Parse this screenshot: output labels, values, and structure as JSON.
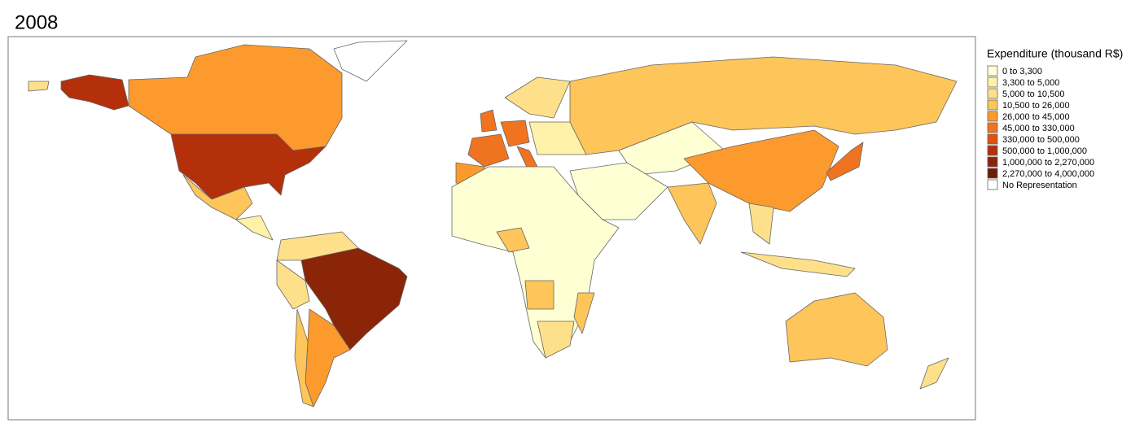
{
  "title": "2008",
  "legend": {
    "title": "Expenditure (thousand R$)",
    "items": [
      {
        "label": "0 to 3,300",
        "color": "#ffffd4"
      },
      {
        "label": "3,300 to 5,000",
        "color": "#fff1a8"
      },
      {
        "label": "5,000 to 10,500",
        "color": "#fee08b"
      },
      {
        "label": "10,500 to 26,000",
        "color": "#fdc55a"
      },
      {
        "label": "26,000 to 45,000",
        "color": "#fd9a2d"
      },
      {
        "label": "45,000 to 330,000",
        "color": "#f07320"
      },
      {
        "label": "330,000 to 500,000",
        "color": "#e0530f"
      },
      {
        "label": "500,000 to 1,000,000",
        "color": "#b3300a"
      },
      {
        "label": "1,000,000 to 2,270,000",
        "color": "#8a2508"
      },
      {
        "label": "2,270,000 to 4,000,000",
        "color": "#6b1d06"
      },
      {
        "label": "No Representation",
        "color": "#ffffff"
      }
    ]
  }
}
